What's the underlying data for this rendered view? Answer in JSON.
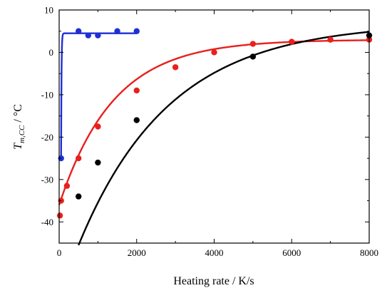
{
  "chart_data": {
    "type": "scatter",
    "title": "",
    "xlabel": "Heating rate / K/s",
    "ylabel": {
      "main": "T",
      "subscript": "m,CC",
      "unit": " / °C"
    },
    "xlim": [
      0,
      8000
    ],
    "ylim": [
      -45,
      10
    ],
    "x_ticks": [
      0,
      2000,
      4000,
      6000,
      8000
    ],
    "y_ticks": [
      10,
      0,
      -10,
      -20,
      -30,
      -40
    ],
    "grid": false,
    "legend": "none",
    "series": [
      {
        "color": "#1f2fd6",
        "points": [
          {
            "x": 50,
            "y": -25
          },
          {
            "x": 500,
            "y": 5
          },
          {
            "x": 750,
            "y": 4
          },
          {
            "x": 1000,
            "y": 4
          },
          {
            "x": 1500,
            "y": 5
          },
          {
            "x": 2000,
            "y": 5
          }
        ],
        "fit": {
          "type": "exp",
          "a": 4.5,
          "b": 29.5,
          "tau": 10,
          "x0": 50,
          "x1": 2000
        }
      },
      {
        "color": "#e8201c",
        "points": [
          {
            "x": 20,
            "y": -38.5
          },
          {
            "x": 50,
            "y": -35
          },
          {
            "x": 200,
            "y": -31.5
          },
          {
            "x": 500,
            "y": -25
          },
          {
            "x": 1000,
            "y": -17.5
          },
          {
            "x": 2000,
            "y": -9
          },
          {
            "x": 3000,
            "y": -3.5
          },
          {
            "x": 4000,
            "y": 0
          },
          {
            "x": 5000,
            "y": 2
          },
          {
            "x": 6000,
            "y": 2.5
          },
          {
            "x": 7000,
            "y": 3
          },
          {
            "x": 8000,
            "y": 3
          }
        ],
        "fit": {
          "type": "exp",
          "a": 3,
          "b": 39,
          "tau": 1400,
          "x0": 0,
          "x1": 8000
        }
      },
      {
        "color": "#000000",
        "points": [
          {
            "x": 500,
            "y": -34
          },
          {
            "x": 1000,
            "y": -26
          },
          {
            "x": 2000,
            "y": -16
          },
          {
            "x": 5000,
            "y": -1
          },
          {
            "x": 8000,
            "y": 4
          }
        ],
        "fit": {
          "type": "exp",
          "a": 7,
          "b": 52.5,
          "tau": 2350,
          "x0": 500,
          "x1": 8000
        }
      }
    ]
  }
}
